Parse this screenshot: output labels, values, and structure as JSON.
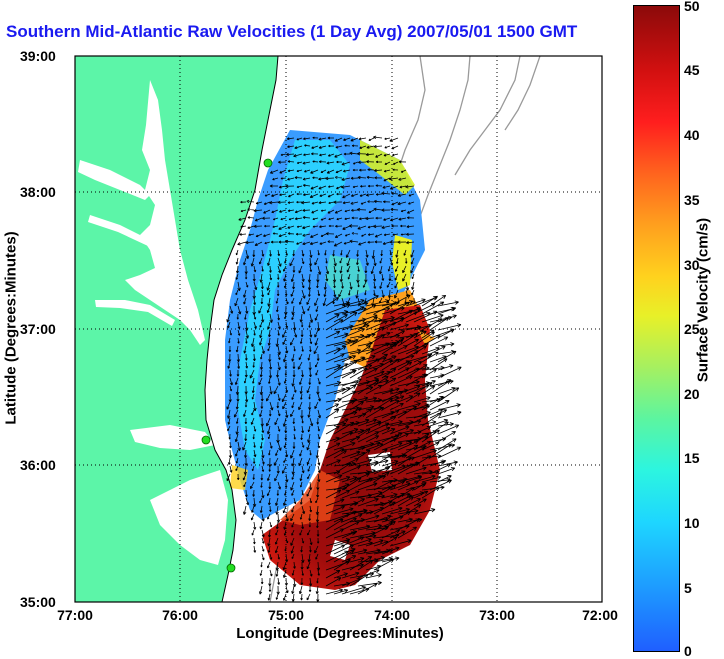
{
  "title": "Southern Mid-Atlantic Raw Velocities (1 Day Avg) 2007/05/01 1500 GMT",
  "axes": {
    "xlabel": "Longitude (Degrees:Minutes)",
    "ylabel": "Latitude (Degrees:Minutes)",
    "xticks": [
      "77:00",
      "76:00",
      "75:00",
      "74:00",
      "73:00",
      "72:00"
    ],
    "yticks": [
      "39:00",
      "38:00",
      "37:00",
      "36:00",
      "35:00"
    ],
    "grid": "dotted"
  },
  "colorbar": {
    "label": "Surface Velocity (cm/s)",
    "ticks": [
      "50",
      "45",
      "40",
      "35",
      "30",
      "25",
      "20",
      "15",
      "10",
      "5",
      "0"
    ],
    "range": [
      0,
      50
    ],
    "colors": [
      "#1f5fff",
      "#1ed6ff",
      "#5cf5a0",
      "#e8f028",
      "#ffa01e",
      "#ff1e1e",
      "#8c0a0a"
    ]
  },
  "colors": {
    "land": "#5cf5a8",
    "water": "#ffffff",
    "bathymetry": "#9a9a9a",
    "stations": "#22dd22",
    "vectors": "#000000",
    "title": "#1a1af0"
  },
  "map_region": {
    "lon_range": [
      "77:00 W",
      "72:00 W"
    ],
    "lat_range": [
      "35:00 N",
      "39:00 N"
    ]
  }
}
